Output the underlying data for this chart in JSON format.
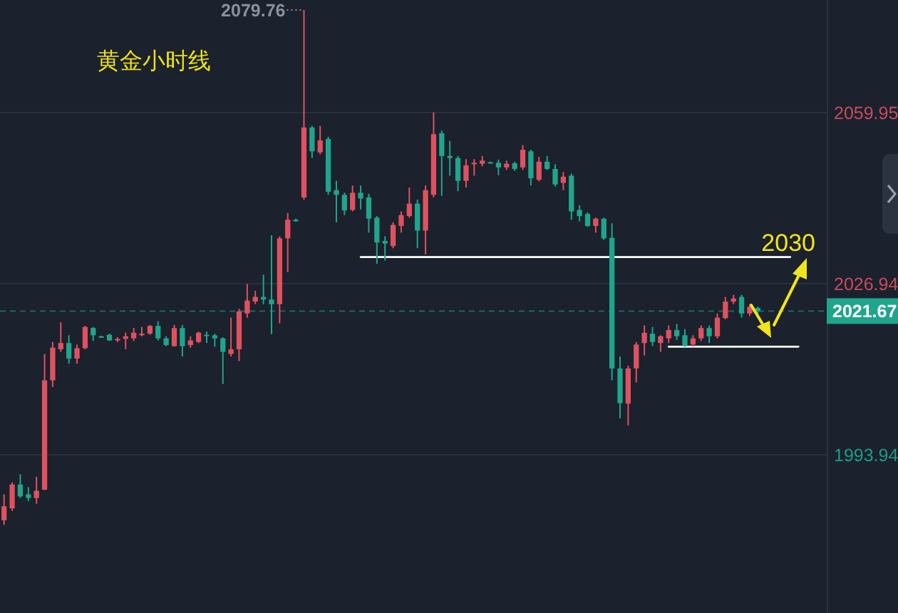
{
  "chart_data": {
    "type": "candlestick",
    "title": "黄金小时线",
    "categories": [
      null,
      null,
      null,
      null,
      null,
      null,
      null,
      null,
      null,
      null,
      null,
      null,
      null,
      null,
      null,
      null,
      null,
      null,
      null,
      null,
      null,
      null,
      null,
      null,
      null,
      null,
      null,
      null,
      null,
      null,
      null,
      null,
      null,
      null,
      null,
      null,
      null,
      null,
      null,
      null,
      null,
      null,
      null,
      null,
      null,
      null,
      null,
      null,
      null,
      null,
      null,
      null,
      null,
      null,
      null,
      null,
      null,
      null,
      null,
      null,
      null,
      null,
      null,
      null,
      null,
      null,
      null,
      null,
      null,
      null,
      null,
      null,
      null,
      null,
      null,
      null,
      null,
      null,
      null,
      null,
      null,
      null,
      null,
      null,
      null,
      null,
      null,
      null,
      null,
      null,
      null,
      null,
      null,
      null,
      null,
      null,
      null,
      null,
      null,
      null,
      null,
      null
    ],
    "ohlc": [
      [
        1981.3,
        1986.3,
        1980.4,
        1984.0
      ],
      [
        1983.6,
        1988.6,
        1983.1,
        1988.2
      ],
      [
        1988.2,
        1990.2,
        1985.6,
        1985.9
      ],
      [
        1986.3,
        1987.7,
        1985.0,
        1985.6
      ],
      [
        1985.6,
        1989.7,
        1984.5,
        1987.0
      ],
      [
        1987.2,
        2013.4,
        1987.1,
        2008.3
      ],
      [
        2008.3,
        2015.7,
        2007.0,
        2014.6
      ],
      [
        2014.3,
        2019.5,
        2013.8,
        2015.5
      ],
      [
        2015.5,
        2017.0,
        2011.5,
        2012.5
      ],
      [
        2012.5,
        2015.2,
        2011.5,
        2014.5
      ],
      [
        2014.5,
        2018.8,
        2014.3,
        2018.6
      ],
      [
        2018.4,
        2018.6,
        2015.9,
        2017.0
      ],
      [
        2016.8,
        2016.9,
        2016.6,
        2016.7
      ],
      [
        2017.1,
        2017.3,
        2015.9,
        2016.0
      ],
      [
        2016.0,
        2016.6,
        2015.7,
        2016.3
      ],
      [
        2016.3,
        2017.5,
        2014.3,
        2016.8
      ],
      [
        2016.4,
        2018.4,
        2015.9,
        2017.5
      ],
      [
        2017.0,
        2018.6,
        2016.8,
        2017.3
      ],
      [
        2017.3,
        2019.0,
        2017.1,
        2018.8
      ],
      [
        2018.8,
        2019.7,
        2016.0,
        2016.4
      ],
      [
        2016.4,
        2016.8,
        2014.9,
        2015.1
      ],
      [
        2014.9,
        2019.0,
        2014.8,
        2018.4
      ],
      [
        2018.4,
        2019.0,
        2012.9,
        2014.9
      ],
      [
        2015.1,
        2016.8,
        2014.6,
        2016.0
      ],
      [
        2015.7,
        2017.7,
        2015.5,
        2017.5
      ],
      [
        2017.1,
        2017.7,
        2015.5,
        2017.0
      ],
      [
        2017.0,
        2017.3,
        2014.8,
        2016.4
      ],
      [
        2016.4,
        2016.6,
        2007.6,
        2013.8
      ],
      [
        2013.4,
        2020.4,
        2012.9,
        2014.3
      ],
      [
        2014.3,
        2022.1,
        2012.0,
        2021.6
      ],
      [
        2021.2,
        2026.9,
        2020.4,
        2023.7
      ],
      [
        2023.5,
        2025.6,
        2023.0,
        2024.4
      ],
      [
        2024.4,
        2028.7,
        2023.0,
        2023.9
      ],
      [
        2023.9,
        2036.3,
        2017.2,
        2023.0
      ],
      [
        2023.0,
        2036.1,
        2019.3,
        2035.7
      ],
      [
        2035.7,
        2040.6,
        2029.2,
        2039.3
      ],
      [
        2039.3,
        2039.5,
        2038.9,
        2039.0
      ],
      [
        2043.6,
        2079.76,
        2043.2,
        2057.1
      ],
      [
        2057.1,
        2057.4,
        2051.2,
        2052.5
      ],
      [
        2052.3,
        2057.4,
        2051.9,
        2054.6
      ],
      [
        2054.9,
        2055.3,
        2044.1,
        2044.7
      ],
      [
        2045.0,
        2046.8,
        2038.8,
        2044.1
      ],
      [
        2044.1,
        2044.5,
        2040.2,
        2041.1
      ],
      [
        2041.2,
        2045.9,
        2040.9,
        2044.5
      ],
      [
        2044.5,
        2045.9,
        2041.3,
        2043.4
      ],
      [
        2043.6,
        2044.3,
        2036.8,
        2039.5
      ],
      [
        2039.7,
        2040.0,
        2030.8,
        2034.9
      ],
      [
        2035.2,
        2036.1,
        2031.4,
        2034.7
      ],
      [
        2034.2,
        2038.8,
        2033.8,
        2038.3
      ],
      [
        2038.1,
        2040.9,
        2036.8,
        2040.2
      ],
      [
        2040.0,
        2045.5,
        2039.7,
        2042.4
      ],
      [
        2042.4,
        2043.2,
        2033.8,
        2037.2
      ],
      [
        2037.2,
        2045.9,
        2032.6,
        2045.0
      ],
      [
        2044.1,
        2060.0,
        2043.6,
        2055.8
      ],
      [
        2056.0,
        2056.5,
        2043.9,
        2051.6
      ],
      [
        2051.6,
        2054.5,
        2047.8,
        2051.2
      ],
      [
        2051.2,
        2051.6,
        2044.8,
        2046.8
      ],
      [
        2046.8,
        2051.0,
        2045.5,
        2049.8
      ],
      [
        2050.0,
        2051.0,
        2047.8,
        2050.3
      ],
      [
        2050.1,
        2051.6,
        2049.6,
        2050.7
      ],
      [
        2050.4,
        2050.5,
        2050.2,
        2050.3
      ],
      [
        2050.3,
        2050.9,
        2047.9,
        2049.4
      ],
      [
        2049.4,
        2050.7,
        2048.9,
        2050.1
      ],
      [
        2050.2,
        2050.5,
        2048.7,
        2049.1
      ],
      [
        2049.4,
        2053.7,
        2048.9,
        2052.8
      ],
      [
        2052.5,
        2052.8,
        2045.9,
        2047.3
      ],
      [
        2047.0,
        2051.4,
        2046.7,
        2050.5
      ],
      [
        2050.5,
        2051.6,
        2048.9,
        2049.1
      ],
      [
        2049.1,
        2050.0,
        2045.7,
        2046.1
      ],
      [
        2046.4,
        2048.5,
        2045.0,
        2047.6
      ],
      [
        2047.8,
        2048.2,
        2039.3,
        2040.9
      ],
      [
        2041.2,
        2042.1,
        2039.0,
        2040.0
      ],
      [
        2040.4,
        2040.7,
        2037.9,
        2038.1
      ],
      [
        2038.1,
        2039.7,
        2036.8,
        2039.5
      ],
      [
        2039.5,
        2039.7,
        2035.4,
        2035.7
      ],
      [
        2035.8,
        2038.6,
        2008.3,
        2010.6
      ],
      [
        2010.6,
        2012.9,
        2001.0,
        2003.9
      ],
      [
        2003.8,
        2011.1,
        1999.6,
        2010.6
      ],
      [
        2010.6,
        2015.7,
        2007.9,
        2015.2
      ],
      [
        2015.5,
        2018.9,
        2013.1,
        2017.5
      ],
      [
        2017.3,
        2018.6,
        2014.9,
        2015.7
      ],
      [
        2015.5,
        2017.0,
        2013.8,
        2016.8
      ],
      [
        2016.4,
        2018.9,
        2015.5,
        2018.0
      ],
      [
        2018.0,
        2019.2,
        2016.1,
        2016.8
      ],
      [
        2017.0,
        2018.2,
        2014.8,
        2014.9
      ],
      [
        2015.2,
        2017.0,
        2014.8,
        2016.4
      ],
      [
        2016.4,
        2018.9,
        2015.9,
        2018.4
      ],
      [
        2018.4,
        2018.9,
        2015.5,
        2016.8
      ],
      [
        2016.8,
        2021.2,
        2016.4,
        2020.4
      ],
      [
        2020.3,
        2024.4,
        2020.1,
        2023.5
      ],
      [
        2023.5,
        2024.8,
        2023.0,
        2024.1
      ],
      [
        2024.4,
        2024.8,
        2020.4,
        2021.2
      ],
      [
        2021.2,
        2023.0,
        2020.7,
        2022.5
      ],
      [
        2022.3,
        2022.5,
        2021.0,
        2021.67
      ],
      null,
      null,
      null,
      null,
      null,
      null,
      null,
      null
    ],
    "colors": [
      "#e0515f",
      "#e0515f",
      "#20a58c",
      "#20a58c",
      "#e0515f",
      "#e0515f",
      "#e0515f",
      "#e0515f",
      "#20a58c",
      "#e0515f",
      "#e0515f",
      "#20a58c",
      "#20a58c",
      "#20a58c",
      "#e0515f",
      "#e0515f",
      "#e0515f",
      "#e0515f",
      "#e0515f",
      "#20a58c",
      "#20a58c",
      "#e0515f",
      "#20a58c",
      "#e0515f",
      "#e0515f",
      "#20a58c",
      "#20a58c",
      "#20a58c",
      "#e0515f",
      "#e0515f",
      "#e0515f",
      "#e0515f",
      "#20a58c",
      "#20a58c",
      "#e0515f",
      "#e0515f",
      "#20a58c",
      "#e0515f",
      "#20a58c",
      "#e0515f",
      "#20a58c",
      "#20a58c",
      "#20a58c",
      "#e0515f",
      "#20a58c",
      "#20a58c",
      "#20a58c",
      "#20a58c",
      "#e0515f",
      "#e0515f",
      "#e0515f",
      "#20a58c",
      "#e0515f",
      "#e0515f",
      "#20a58c",
      "#20a58c",
      "#20a58c",
      "#e0515f",
      "#e0515f",
      "#e0515f",
      "#20a58c",
      "#20a58c",
      "#e0515f",
      "#20a58c",
      "#e0515f",
      "#20a58c",
      "#e0515f",
      "#20a58c",
      "#20a58c",
      "#e0515f",
      "#20a58c",
      "#20a58c",
      "#20a58c",
      "#e0515f",
      "#20a58c",
      "#20a58c",
      "#20a58c",
      "#e0515f",
      "#e0515f",
      "#e0515f",
      "#20a58c",
      "#e0515f",
      "#e0515f",
      "#20a58c",
      "#20a58c",
      "#e0515f",
      "#e0515f",
      "#20a58c",
      "#e0515f",
      "#e0515f",
      "#e0515f",
      "#20a58c",
      "#e0515f",
      "#20a58c",
      null,
      null,
      null,
      null,
      null,
      null,
      null,
      null
    ],
    "series": [
      {
        "type": "line",
        "color": "#ffffff",
        "values": [
          null,
          null,
          null,
          null,
          null,
          null,
          null,
          null,
          null,
          null,
          null,
          null,
          null,
          null,
          null,
          null,
          null,
          null,
          null,
          null,
          null,
          null,
          null,
          null,
          null,
          null,
          null,
          null,
          null,
          null,
          null,
          null,
          null,
          null,
          null,
          null,
          null,
          null,
          null,
          null,
          null,
          null,
          null,
          null,
          2032.1,
          2032.1,
          2032.1,
          2032.1,
          2032.1,
          2032.1,
          2032.1,
          2032.1,
          2032.1,
          2032.1,
          2032.1,
          2032.1,
          2032.1,
          2032.1,
          2032.1,
          2032.1,
          2032.1,
          2032.1,
          2032.1,
          2032.1,
          2032.1,
          2032.1,
          2032.1,
          2032.1,
          2032.1,
          2032.1,
          2032.1,
          2032.1,
          2032.1,
          2032.1,
          2032.1,
          2032.1,
          2032.1,
          2032.1,
          2032.1,
          2032.1,
          2032.1,
          2032.1,
          2032.1,
          2032.1,
          2032.1,
          2032.1,
          2032.1,
          2032.1,
          2032.1,
          2032.1,
          2032.1,
          2032.1,
          2032.1,
          2032.1,
          2032.1,
          2032.1,
          2032.1,
          2032.1,
          null,
          null,
          null,
          null
        ]
      },
      {
        "type": "line",
        "color": "#ffffff",
        "values": [
          null,
          null,
          null,
          null,
          null,
          null,
          null,
          null,
          null,
          null,
          null,
          null,
          null,
          null,
          null,
          null,
          null,
          null,
          null,
          null,
          null,
          null,
          null,
          null,
          null,
          null,
          null,
          null,
          null,
          null,
          null,
          null,
          null,
          null,
          null,
          null,
          null,
          null,
          null,
          null,
          null,
          null,
          null,
          null,
          null,
          null,
          null,
          null,
          null,
          null,
          null,
          null,
          null,
          null,
          null,
          null,
          null,
          null,
          null,
          null,
          null,
          null,
          null,
          null,
          null,
          null,
          null,
          null,
          null,
          null,
          null,
          null,
          null,
          null,
          null,
          null,
          null,
          null,
          null,
          null,
          null,
          null,
          2014.8,
          2014.8,
          2014.8,
          2014.8,
          2014.8,
          2014.8,
          2014.8,
          2014.8,
          2014.8,
          2014.8,
          2014.8,
          2014.8,
          2014.8,
          2014.8,
          2014.8,
          2014.8,
          2014.8,
          null,
          null,
          null
        ]
      }
    ],
    "ylim": [
      1963.4,
      2081.7
    ],
    "yticks": [
      2059.95,
      2026.94,
      1993.94
    ],
    "grid": "y",
    "tick_labels": "y",
    "ref_lines": [
      {
        "axis": "y",
        "value": 2021.67,
        "label": "2021.67",
        "color": "#1fa58c",
        "line_style": "dashed"
      }
    ],
    "annotations": [
      "2079.76",
      "2030"
    ]
  }
}
